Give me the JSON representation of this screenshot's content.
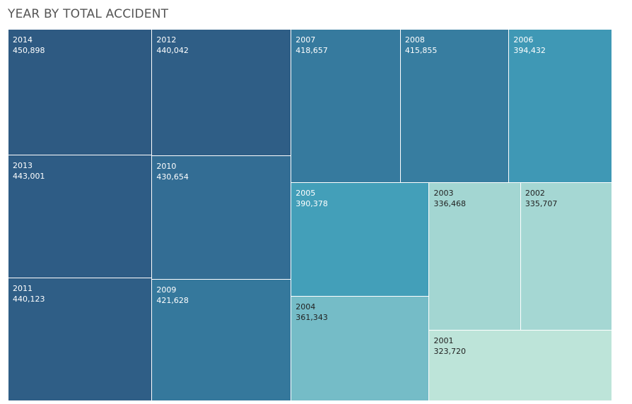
{
  "title": "YEAR BY TOTAL ACCIDENT",
  "chart_data": {
    "type": "treemap",
    "title": "YEAR BY TOTAL ACCIDENT",
    "measure": "Total Accident",
    "dimension": "Year",
    "items": [
      {
        "year": "2014",
        "value": 450898,
        "label": "450,898",
        "color": "#2e5a82",
        "text_color": "#ffffff"
      },
      {
        "year": "2013",
        "value": 443001,
        "label": "443,001",
        "color": "#2e5c85",
        "text_color": "#ffffff"
      },
      {
        "year": "2011",
        "value": 440123,
        "label": "440,123",
        "color": "#2f5e86",
        "text_color": "#ffffff"
      },
      {
        "year": "2012",
        "value": 440042,
        "label": "440,042",
        "color": "#2f5e86",
        "text_color": "#ffffff"
      },
      {
        "year": "2010",
        "value": 430654,
        "label": "430,654",
        "color": "#336d94",
        "text_color": "#ffffff"
      },
      {
        "year": "2009",
        "value": 421628,
        "label": "421,628",
        "color": "#35789c",
        "text_color": "#ffffff"
      },
      {
        "year": "2007",
        "value": 418657,
        "label": "418,657",
        "color": "#367a9e",
        "text_color": "#ffffff"
      },
      {
        "year": "2008",
        "value": 415855,
        "label": "415,855",
        "color": "#377da0",
        "text_color": "#ffffff"
      },
      {
        "year": "2006",
        "value": 394432,
        "label": "394,432",
        "color": "#3f98b5",
        "text_color": "#ffffff"
      },
      {
        "year": "2005",
        "value": 390378,
        "label": "390,378",
        "color": "#439fb9",
        "text_color": "#ffffff"
      },
      {
        "year": "2004",
        "value": 361343,
        "label": "361,343",
        "color": "#75bcc7",
        "text_color": "#222222"
      },
      {
        "year": "2003",
        "value": 336468,
        "label": "336,468",
        "color": "#a3d6d2",
        "text_color": "#222222"
      },
      {
        "year": "2002",
        "value": 335707,
        "label": "335,707",
        "color": "#a5d7d3",
        "text_color": "#222222"
      },
      {
        "year": "2001",
        "value": 323720,
        "label": "323,720",
        "color": "#bde4d9",
        "text_color": "#222222"
      }
    ]
  }
}
